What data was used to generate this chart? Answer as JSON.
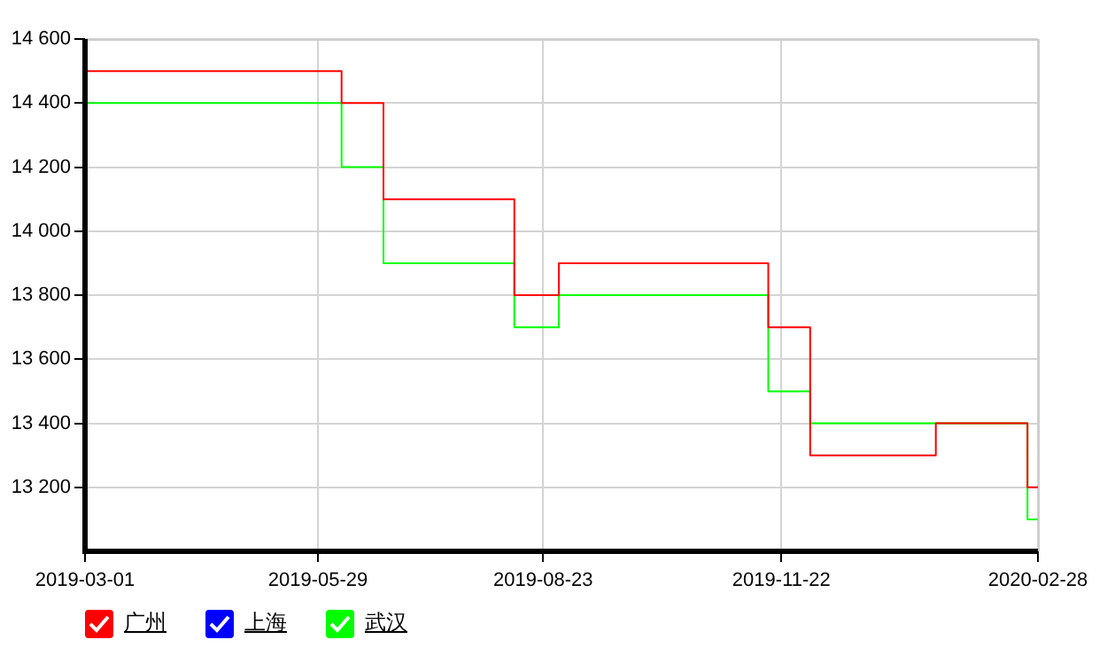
{
  "chart_data": {
    "type": "step",
    "x": [
      "2019-03-01",
      "2019-06-07",
      "2019-06-23",
      "2019-08-12",
      "2019-08-29",
      "2019-11-17",
      "2019-12-03",
      "2020-01-20",
      "2020-02-24",
      "2020-02-28"
    ],
    "series": [
      {
        "name": "广州",
        "color": "#ff0000",
        "values": [
          14500,
          14400,
          14100,
          13800,
          13900,
          13700,
          13300,
          13400,
          13200,
          13200
        ]
      },
      {
        "name": "上海",
        "color": "#0000ff",
        "values": [
          null,
          null,
          null,
          null,
          null,
          null,
          null,
          null,
          null,
          null
        ]
      },
      {
        "name": "武汉",
        "color": "#00ff00",
        "values": [
          14400,
          14200,
          13900,
          13700,
          13800,
          13500,
          13400,
          13400,
          13100,
          13100
        ]
      }
    ],
    "xlim": [
      "2019-03-01",
      "2020-02-28"
    ],
    "xticks": [
      "2019-03-01",
      "2019-05-29",
      "2019-08-23",
      "2019-11-22",
      "2020-02-28"
    ],
    "ylim": [
      13000,
      14600
    ],
    "yticks": [
      {
        "value": 13200,
        "label": "13 200"
      },
      {
        "value": 13400,
        "label": "13 400"
      },
      {
        "value": 13600,
        "label": "13 600"
      },
      {
        "value": 13800,
        "label": "13 800"
      },
      {
        "value": 14000,
        "label": "14 000"
      },
      {
        "value": 14200,
        "label": "14 200"
      },
      {
        "value": 14400,
        "label": "14 400"
      },
      {
        "value": 14600,
        "label": "14 600"
      }
    ],
    "grid": true,
    "legend": "bottom left",
    "marker": "none",
    "line_style": "solid"
  }
}
